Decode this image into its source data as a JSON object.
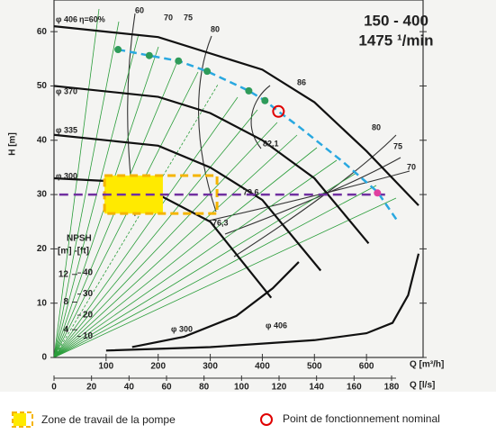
{
  "chart_data": {
    "type": "line",
    "title": "150 - 400",
    "subtitle": "1475 ¹/min",
    "y_label": "H [m]",
    "x_label": "Q [m³/h]",
    "x2_label": "Q [l/s]",
    "npsh_label": "NPSH",
    "npsh_units": "[m] -[ft]",
    "xlim": [
      0,
      700
    ],
    "xticks": [
      100,
      200,
      300,
      400,
      500,
      600
    ],
    "x2lim": [
      0,
      194.4
    ],
    "x2ticks": [
      0,
      20,
      40,
      60,
      80,
      100,
      120,
      140,
      160,
      180
    ],
    "ylim": [
      0,
      65
    ],
    "yticks": [
      0,
      10,
      20,
      30,
      40,
      50,
      60
    ],
    "y2lim": [
      0,
      51
    ],
    "y2ticks": [
      4,
      8,
      12
    ],
    "y3lim": [
      0,
      167
    ],
    "y3ticks": [
      10,
      20,
      30,
      40
    ],
    "series": [
      {
        "name": "φ 406",
        "color": "#111111",
        "x": [
          0,
          200,
          400,
          500,
          600,
          700
        ],
        "values": [
          61,
          59,
          53,
          47,
          38,
          28
        ]
      },
      {
        "name": "φ 370",
        "color": "#111111",
        "x": [
          0,
          200,
          300,
          400,
          500,
          604
        ],
        "values": [
          50,
          48,
          45,
          40,
          33,
          21
        ]
      },
      {
        "name": "φ 335",
        "color": "#111111",
        "x": [
          0,
          200,
          300,
          400,
          512
        ],
        "values": [
          41,
          39,
          35,
          29,
          16
        ]
      },
      {
        "name": "φ 300",
        "color": "#111111",
        "x": [
          0,
          100,
          200,
          300,
          417
        ],
        "values": [
          33,
          32.5,
          30,
          25,
          11
        ]
      },
      {
        "name": "φ 300",
        "color": "#111111",
        "axis": "y2",
        "x": [
          150,
          250,
          350,
          420,
          470
        ],
        "values": [
          1.5,
          3,
          6,
          10,
          13.8
        ]
      },
      {
        "name": "φ 406",
        "color": "#111111",
        "axis": "y2",
        "x": [
          100,
          300,
          500,
          600,
          650,
          680,
          700
        ],
        "values": [
          1,
          1.5,
          2.5,
          3.5,
          5,
          9,
          15
        ]
      }
    ],
    "system_curve": {
      "color": "#29a8e0",
      "x": [
        123,
        183,
        239,
        294,
        374,
        405,
        431,
        469,
        555,
        621,
        659
      ],
      "values": [
        56.7,
        55.6,
        54.6,
        52.7,
        49.1,
        47.3,
        45.3,
        42.6,
        36,
        30.5,
        25.2
      ]
    },
    "points": {
      "color": "#2e9b5a",
      "x": [
        123,
        183,
        239,
        294,
        374,
        405
      ],
      "values": [
        56.7,
        55.6,
        54.6,
        52.7,
        49.1,
        47.3
      ]
    },
    "nominal_point": {
      "color": "#e00000",
      "x": 431,
      "value": 45.3
    },
    "intersection_point": {
      "color": "#e040a0",
      "x": 621,
      "value": 30.3
    },
    "work_line": {
      "color": "#7030a0",
      "x": [
        10,
        640
      ],
      "values": [
        30,
        30
      ]
    },
    "work_zone": {
      "color": "#ffea00",
      "xlim": [
        97,
        313
      ],
      "ylim": [
        26.5,
        33.5
      ],
      "core_xlim": [
        97,
        209
      ]
    },
    "efficiency_labels": [
      "η=60%",
      "60",
      "70",
      "75",
      "80",
      "86",
      "82,1",
      "80",
      "75",
      "70",
      "79,6",
      "76,3"
    ],
    "legend": [
      {
        "label": "Zone de travail de la pompe"
      },
      {
        "label": "Point de fonctionnement nominal"
      }
    ]
  }
}
